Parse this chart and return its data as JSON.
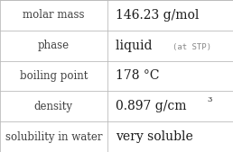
{
  "rows": [
    {
      "label": "molar mass",
      "value": "146.23 g/mol",
      "value_extra": null,
      "superscript": null
    },
    {
      "label": "phase",
      "value": "liquid",
      "value_extra": "(at STP)",
      "superscript": null
    },
    {
      "label": "boiling point",
      "value": "178 °C",
      "value_extra": null,
      "superscript": null
    },
    {
      "label": "density",
      "value": "0.897 g/cm",
      "value_extra": null,
      "superscript": "3"
    },
    {
      "label": "solubility in water",
      "value": "very soluble",
      "value_extra": null,
      "superscript": null
    }
  ],
  "bg_color": "#ffffff",
  "line_color": "#bbbbbb",
  "label_color": "#404040",
  "value_color": "#1a1a1a",
  "extra_color": "#888888",
  "col_split": 0.46,
  "label_fontsize": 8.5,
  "value_fontsize": 10.0,
  "extra_fontsize": 6.5,
  "super_fontsize": 6.0,
  "font_family": "DejaVu Serif"
}
